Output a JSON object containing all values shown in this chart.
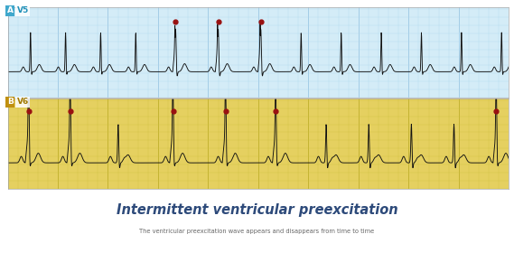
{
  "title": "Intermittent ventricular preexcitation",
  "subtitle": "The ventricular preexcitation wave appears and disappears from time to time",
  "title_color": "#2d4a7a",
  "subtitle_color": "#666666",
  "panel_a_label": "A",
  "panel_a_lead": "V5",
  "panel_b_label": "B",
  "panel_b_lead": "V6",
  "panel_a_bg": "#d4ecf7",
  "panel_b_bg": "#e5d060",
  "panel_a_grid_minor": "#b0d8ee",
  "panel_a_grid_major": "#90c0e0",
  "panel_b_grid_minor": "#cfc040",
  "panel_b_grid_major": "#b8a820",
  "label_bg_a": "#40a8cc",
  "label_bg_b": "#c09010",
  "label_text_a": "#ffffff",
  "label_text_b": "#ffffff",
  "lead_text_a": "#2090b8",
  "lead_text_b": "#a07800",
  "ecg_color": "#111111",
  "dot_color": "#991111",
  "fig_bg": "#ffffff",
  "panel_border": "#aaaaaa"
}
